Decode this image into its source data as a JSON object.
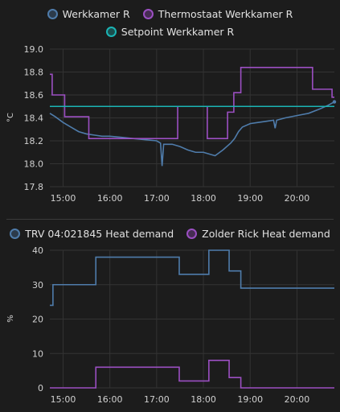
{
  "chart_data": [
    {
      "type": "line",
      "ylabel": "°C",
      "ylim": [
        17.8,
        19.0
      ],
      "yticks": [
        "19.0",
        "18.8",
        "18.6",
        "18.4",
        "18.2",
        "18.0",
        "17.8"
      ],
      "xlim": [
        "14:43",
        "20:48"
      ],
      "xticks": [
        "15:00",
        "16:00",
        "17:00",
        "18:00",
        "19:00",
        "20:00"
      ],
      "grid": true,
      "legend_position": "top-center",
      "series": [
        {
          "name": "Werkkamer R",
          "color": "#4f7cab",
          "step": false,
          "points": [
            [
              "14:43",
              18.44
            ],
            [
              "14:50",
              18.41
            ],
            [
              "15:00",
              18.36
            ],
            [
              "15:10",
              18.32
            ],
            [
              "15:20",
              18.28
            ],
            [
              "15:30",
              18.26
            ],
            [
              "15:40",
              18.25
            ],
            [
              "15:50",
              18.24
            ],
            [
              "16:00",
              18.24
            ],
            [
              "16:15",
              18.23
            ],
            [
              "16:30",
              18.22
            ],
            [
              "16:45",
              18.21
            ],
            [
              "17:00",
              18.2
            ],
            [
              "17:05",
              18.18
            ],
            [
              "17:07",
              17.98
            ],
            [
              "17:09",
              18.17
            ],
            [
              "17:20",
              18.17
            ],
            [
              "17:30",
              18.15
            ],
            [
              "17:40",
              18.12
            ],
            [
              "17:50",
              18.1
            ],
            [
              "18:00",
              18.1
            ],
            [
              "18:10",
              18.08
            ],
            [
              "18:15",
              18.07
            ],
            [
              "18:25",
              18.12
            ],
            [
              "18:35",
              18.18
            ],
            [
              "18:40",
              18.22
            ],
            [
              "18:45",
              18.28
            ],
            [
              "18:50",
              18.32
            ],
            [
              "19:00",
              18.35
            ],
            [
              "19:10",
              18.36
            ],
            [
              "19:20",
              18.37
            ],
            [
              "19:30",
              18.38
            ],
            [
              "19:32",
              18.31
            ],
            [
              "19:34",
              18.38
            ],
            [
              "19:45",
              18.4
            ],
            [
              "20:00",
              18.42
            ],
            [
              "20:15",
              18.44
            ],
            [
              "20:30",
              18.48
            ],
            [
              "20:40",
              18.51
            ],
            [
              "20:48",
              18.54
            ]
          ]
        },
        {
          "name": "Thermostaat Werkkamer R",
          "color": "#9b4fc2",
          "step": true,
          "points": [
            [
              "14:43",
              18.78
            ],
            [
              "14:46",
              18.6
            ],
            [
              "15:02",
              18.41
            ],
            [
              "15:33",
              18.22
            ],
            [
              "17:27",
              18.5
            ],
            [
              "18:05",
              18.22
            ],
            [
              "18:31",
              18.45
            ],
            [
              "18:39",
              18.62
            ],
            [
              "18:48",
              18.84
            ],
            [
              "20:20",
              18.65
            ],
            [
              "20:45",
              18.58
            ],
            [
              "20:48",
              18.58
            ]
          ]
        },
        {
          "name": "Setpoint Werkkamer R",
          "color": "#1bb4b4",
          "step": true,
          "points": [
            [
              "14:43",
              18.5
            ],
            [
              "20:48",
              18.5
            ]
          ]
        }
      ]
    },
    {
      "type": "line",
      "ylabel": "%",
      "ylim": [
        0,
        40
      ],
      "yticks": [
        "40",
        "30",
        "20",
        "10",
        "0"
      ],
      "xlim": [
        "14:43",
        "20:48"
      ],
      "xticks": [
        "15:00",
        "16:00",
        "17:00",
        "18:00",
        "19:00",
        "20:00"
      ],
      "grid": true,
      "legend_position": "top-center",
      "series": [
        {
          "name": "TRV 04:021845 Heat demand",
          "color": "#4f7cab",
          "step": true,
          "points": [
            [
              "14:43",
              24
            ],
            [
              "14:47",
              30
            ],
            [
              "15:42",
              38
            ],
            [
              "17:29",
              33
            ],
            [
              "18:07",
              40
            ],
            [
              "18:33",
              34
            ],
            [
              "18:48",
              29
            ],
            [
              "20:48",
              29
            ]
          ]
        },
        {
          "name": "Zolder Rick Heat demand",
          "color": "#9b4fc2",
          "step": true,
          "points": [
            [
              "14:43",
              0
            ],
            [
              "15:42",
              6
            ],
            [
              "17:29",
              2
            ],
            [
              "18:07",
              8
            ],
            [
              "18:33",
              3
            ],
            [
              "18:48",
              0
            ],
            [
              "20:48",
              0
            ]
          ]
        }
      ]
    }
  ]
}
